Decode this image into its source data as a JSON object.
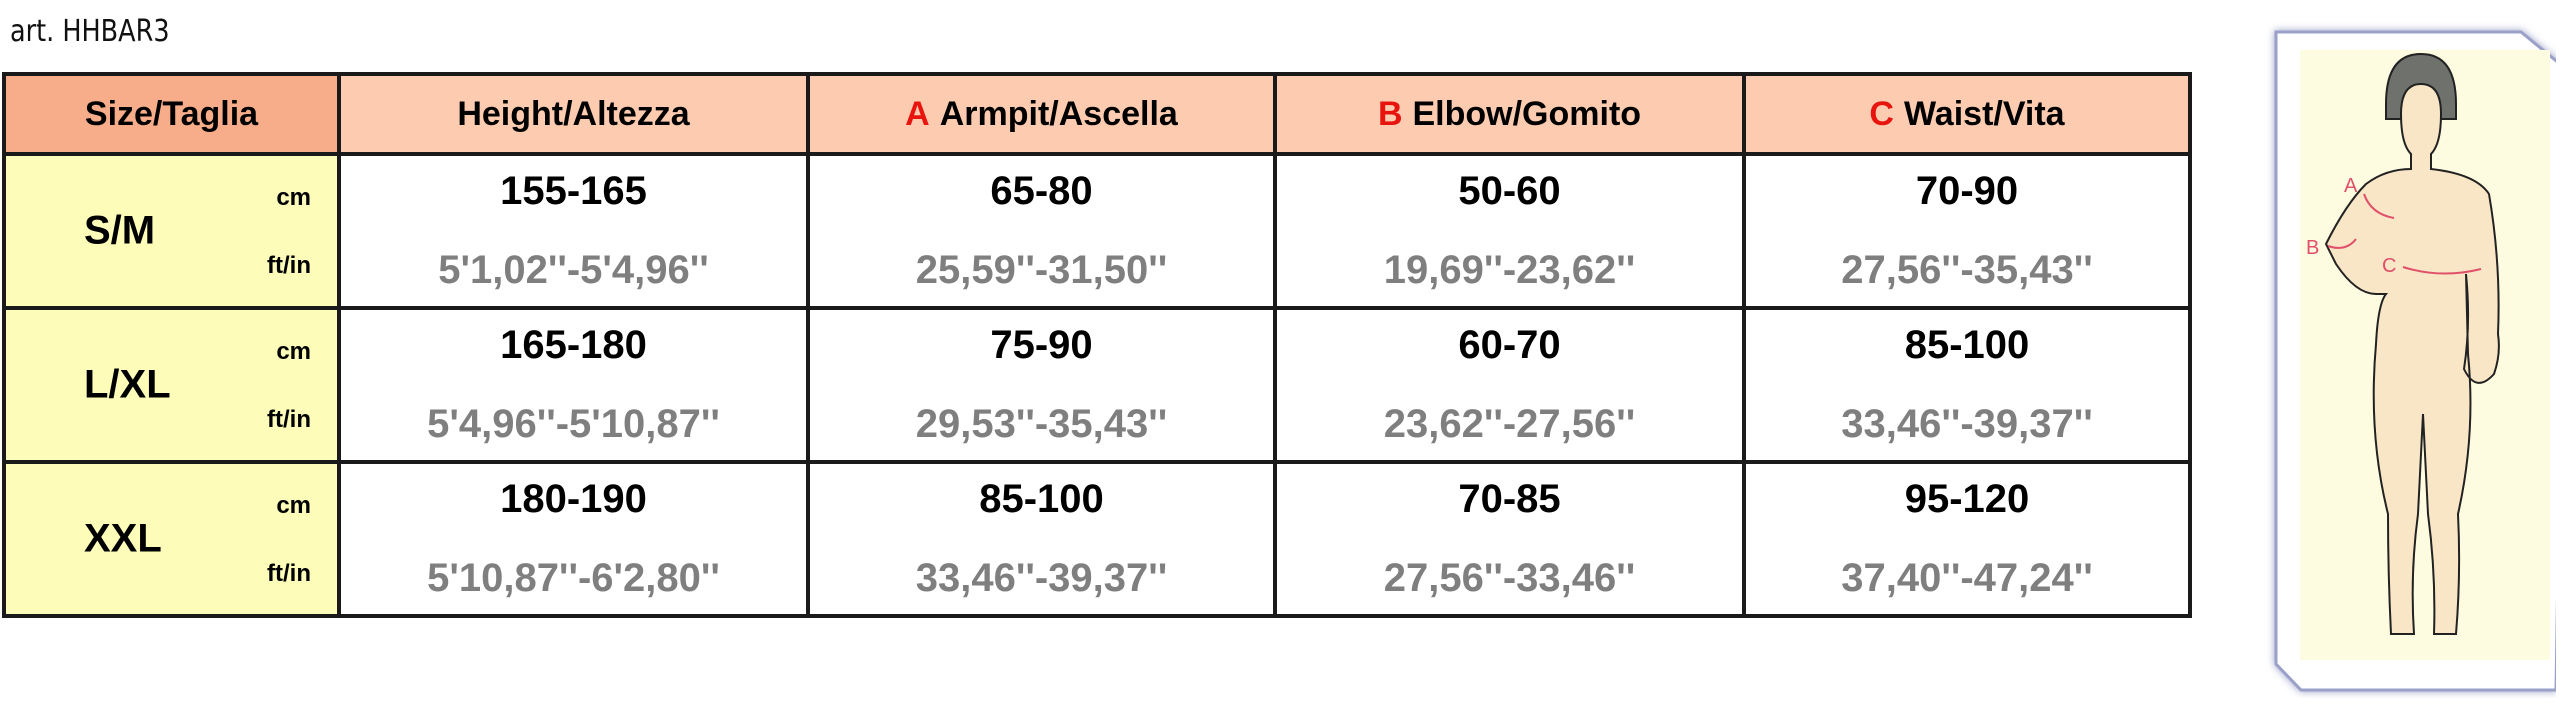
{
  "title": "art. HHBAR3",
  "colors": {
    "size_header": "#f7ad8a",
    "header": "#fdcbb0",
    "size_column": "#fdfdb9",
    "letter": "#e8150f",
    "imperial_text": "#7f7f7f",
    "measure_line": "#e0506a"
  },
  "headers": [
    {
      "letter": "",
      "label": "Size/Taglia"
    },
    {
      "letter": "",
      "label": "Height/Altezza"
    },
    {
      "letter": "A",
      "label": "Armpit/Ascella"
    },
    {
      "letter": "B",
      "label": "Elbow/Gomito"
    },
    {
      "letter": "C",
      "label": "Waist/Vita"
    }
  ],
  "units": {
    "metric": "cm",
    "imperial": "ft/in"
  },
  "rows": [
    {
      "size": "S/M",
      "values": [
        {
          "cm": "155-165",
          "ft": "5'1,02''-5'4,96''"
        },
        {
          "cm": "65-80",
          "ft": "25,59''-31,50''"
        },
        {
          "cm": "50-60",
          "ft": "19,69''-23,62''"
        },
        {
          "cm": "70-90",
          "ft": "27,56''-35,43''"
        }
      ]
    },
    {
      "size": "L/XL",
      "values": [
        {
          "cm": "165-180",
          "ft": "5'4,96''-5'10,87''"
        },
        {
          "cm": "75-90",
          "ft": "29,53''-35,43''"
        },
        {
          "cm": "60-70",
          "ft": "23,62''-27,56''"
        },
        {
          "cm": "85-100",
          "ft": "33,46''-39,37''"
        }
      ]
    },
    {
      "size": "XXL",
      "values": [
        {
          "cm": "180-190",
          "ft": "5'10,87''-6'2,80''"
        },
        {
          "cm": "85-100",
          "ft": "33,46''-39,37''"
        },
        {
          "cm": "70-85",
          "ft": "27,56''-33,46''"
        },
        {
          "cm": "95-120",
          "ft": "37,40''-47,24''"
        }
      ]
    }
  ],
  "figure": {
    "labels": [
      "A",
      "B",
      "C"
    ]
  }
}
